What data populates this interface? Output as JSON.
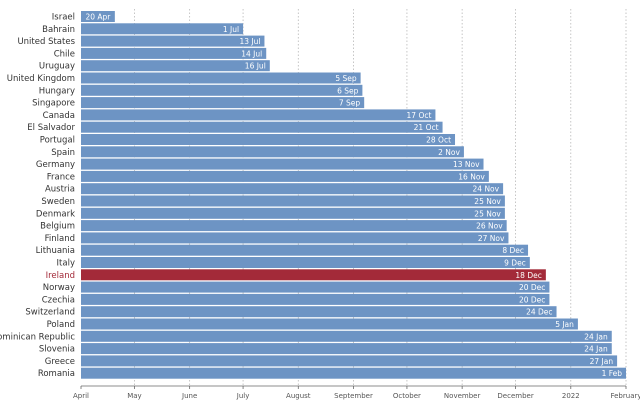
{
  "chart_data": {
    "type": "bar",
    "orientation": "horizontal",
    "title": "",
    "xlabel": "",
    "ylabel": "",
    "categories": [
      "Israel",
      "Bahrain",
      "United States",
      "Chile",
      "Uruguay",
      "United Kingdom",
      "Hungary",
      "Singapore",
      "Canada",
      "El Salvador",
      "Portugal",
      "Spain",
      "Germany",
      "France",
      "Austria",
      "Sweden",
      "Denmark",
      "Belgium",
      "Finland",
      "Lithuania",
      "Italy",
      "Ireland",
      "Norway",
      "Czechia",
      "Switzerland",
      "Poland",
      "Dominican Republic",
      "Slovenia",
      "Greece",
      "Romania"
    ],
    "values": [
      "2021-04-20",
      "2021-07-01",
      "2021-07-13",
      "2021-07-14",
      "2021-07-16",
      "2021-09-05",
      "2021-09-06",
      "2021-09-07",
      "2021-10-17",
      "2021-10-21",
      "2021-10-28",
      "2021-11-02",
      "2021-11-13",
      "2021-11-16",
      "2021-11-24",
      "2021-11-25",
      "2021-11-25",
      "2021-11-26",
      "2021-11-27",
      "2021-12-08",
      "2021-12-09",
      "2021-12-18",
      "2021-12-20",
      "2021-12-20",
      "2021-12-24",
      "2022-01-05",
      "2022-01-24",
      "2022-01-24",
      "2022-01-27",
      "2022-02-01"
    ],
    "bar_labels": [
      "20 Apr",
      "1 Jul",
      "13 Jul",
      "14 Jul",
      "16 Jul",
      "5 Sep",
      "6 Sep",
      "7 Sep",
      "17 Oct",
      "21 Oct",
      "28 Oct",
      "2 Nov",
      "13 Nov",
      "16 Nov",
      "24 Nov",
      "25 Nov",
      "25 Nov",
      "26 Nov",
      "27 Nov",
      "8 Dec",
      "9 Dec",
      "18 Dec",
      "20 Dec",
      "20 Dec",
      "24 Dec",
      "5 Jan",
      "24 Jan",
      "24 Jan",
      "27 Jan",
      "1 Feb"
    ],
    "highlight": "Ireland",
    "x_ticks": [
      {
        "date": "2021-04-01",
        "label": "April"
      },
      {
        "date": "2021-05-01",
        "label": "May"
      },
      {
        "date": "2021-06-01",
        "label": "June"
      },
      {
        "date": "2021-07-01",
        "label": "July"
      },
      {
        "date": "2021-08-01",
        "label": "August"
      },
      {
        "date": "2021-09-01",
        "label": "September"
      },
      {
        "date": "2021-10-01",
        "label": "October"
      },
      {
        "date": "2021-11-01",
        "label": "November"
      },
      {
        "date": "2021-12-01",
        "label": "December"
      },
      {
        "date": "2022-01-01",
        "label": "2022"
      },
      {
        "date": "2022-02-01",
        "label": "February"
      }
    ],
    "xlim": [
      "2021-04-01",
      "2022-02-01"
    ],
    "grid": "vertical-dotted",
    "legend": "none",
    "colors": {
      "bar": "#6d94c4",
      "highlight": "#a32a39"
    }
  }
}
